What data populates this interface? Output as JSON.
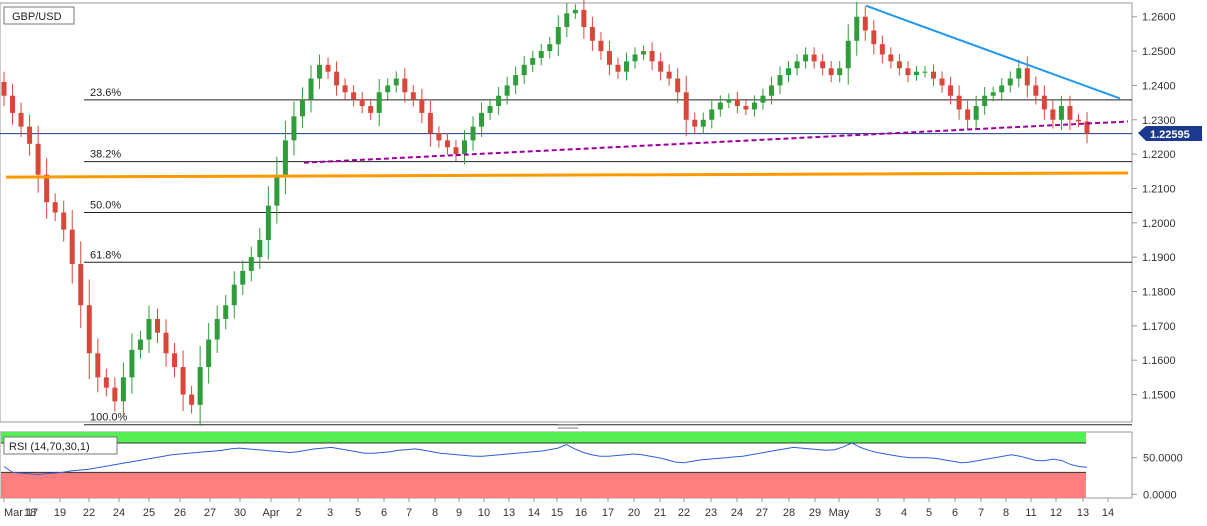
{
  "chart_data": [
    {
      "type": "candlestick",
      "title": "GBP/USD",
      "y_range": [
        1.142,
        1.264
      ],
      "y_ticks": [
        "1.2600",
        "1.2500",
        "1.2400",
        "1.2300",
        "1.2200",
        "1.2100",
        "1.2000",
        "1.1900",
        "1.1800",
        "1.1700",
        "1.1600",
        "1.1500"
      ],
      "x_ticks": [
        "Mar 17",
        "18",
        "19",
        "22",
        "24",
        "25",
        "26",
        "27",
        "30",
        "Apr",
        "2",
        "3",
        "5",
        "6",
        "7",
        "8",
        "9",
        "10",
        "13",
        "14",
        "15",
        "16",
        "17",
        "20",
        "21",
        "22",
        "23",
        "24",
        "27",
        "28",
        "29",
        "May",
        "3",
        "4",
        "5",
        "6",
        "7",
        "8",
        "11",
        "12",
        "13",
        "14"
      ],
      "last_price": "1.22595",
      "fib_levels": [
        {
          "label": "23.6%",
          "value": 1.2358
        },
        {
          "label": "38.2%",
          "value": 1.2178
        },
        {
          "label": "50.0%",
          "value": 1.203
        },
        {
          "label": "61.8%",
          "value": 1.1885
        },
        {
          "label": "100.0%",
          "value": 1.1412
        }
      ],
      "last_price_line": 1.22595,
      "support_horizontal": {
        "value_start": 1.2133,
        "value_end": 1.2145,
        "color": "#ff9900"
      },
      "resistance_trendline": {
        "from_value": 1.2632,
        "to_value": 1.2362,
        "color": "#2299ee"
      },
      "support_trendline": {
        "from_value": 1.2175,
        "to_value": 1.2295,
        "color": "#990099"
      },
      "series_close": [
        1.237,
        1.232,
        1.228,
        1.223,
        1.214,
        1.206,
        1.203,
        1.198,
        1.188,
        1.176,
        1.162,
        1.155,
        1.152,
        1.148,
        1.155,
        1.163,
        1.166,
        1.172,
        1.168,
        1.162,
        1.158,
        1.15,
        1.147,
        1.158,
        1.166,
        1.172,
        1.176,
        1.182,
        1.186,
        1.19,
        1.195,
        1.205,
        1.214,
        1.224,
        1.231,
        1.236,
        1.242,
        1.246,
        1.244,
        1.24,
        1.238,
        1.236,
        1.234,
        1.232,
        1.238,
        1.24,
        1.242,
        1.238,
        1.236,
        1.232,
        1.226,
        1.224,
        1.222,
        1.22,
        1.224,
        1.228,
        1.232,
        1.234,
        1.237,
        1.24,
        1.243,
        1.246,
        1.248,
        1.25,
        1.252,
        1.257,
        1.261,
        1.262,
        1.257,
        1.253,
        1.25,
        1.246,
        1.244,
        1.247,
        1.249,
        1.25,
        1.247,
        1.244,
        1.242,
        1.238,
        1.23,
        1.228,
        1.23,
        1.233,
        1.235,
        1.236,
        1.234,
        1.233,
        1.235,
        1.237,
        1.24,
        1.243,
        1.245,
        1.247,
        1.249,
        1.247,
        1.245,
        1.243,
        1.245,
        1.253,
        1.26,
        1.256,
        1.252,
        1.249,
        1.247,
        1.245,
        1.243,
        1.244,
        1.244,
        1.242,
        1.24,
        1.237,
        1.233,
        1.23,
        1.234,
        1.237,
        1.238,
        1.24,
        1.242,
        1.245,
        1.24,
        1.237,
        1.233,
        1.23,
        1.234,
        1.23,
        1.2295,
        1.22595
      ]
    },
    {
      "type": "line",
      "title": "RSI (14,70,30,1)",
      "y_range": [
        -5,
        85
      ],
      "y_ticks": [
        "50.0000",
        "0.0000"
      ],
      "overbought": 70,
      "oversold": 30,
      "values": [
        38,
        30,
        29,
        28,
        27,
        28,
        29,
        30,
        32,
        33,
        34,
        36,
        38,
        40,
        42,
        44,
        46,
        48,
        50,
        52,
        54,
        55,
        56,
        57,
        58,
        59,
        60,
        62,
        63,
        62,
        61,
        60,
        59,
        58,
        57,
        58,
        60,
        62,
        63,
        64,
        62,
        60,
        58,
        56,
        56,
        57,
        58,
        60,
        61,
        62,
        60,
        58,
        56,
        55,
        54,
        53,
        52,
        52,
        53,
        54,
        55,
        56,
        57,
        58,
        59,
        61,
        63,
        68,
        62,
        57,
        54,
        52,
        52,
        53,
        54,
        55,
        54,
        52,
        50,
        47,
        44,
        43,
        45,
        47,
        48,
        49,
        50,
        51,
        52,
        54,
        56,
        58,
        60,
        62,
        64,
        63,
        62,
        61,
        60,
        61,
        65,
        70,
        64,
        60,
        57,
        55,
        53,
        51,
        50,
        50,
        50,
        49,
        47,
        45,
        43,
        44,
        46,
        48,
        50,
        52,
        54,
        52,
        49,
        46,
        46,
        48,
        46,
        41,
        38,
        37
      ]
    }
  ]
}
